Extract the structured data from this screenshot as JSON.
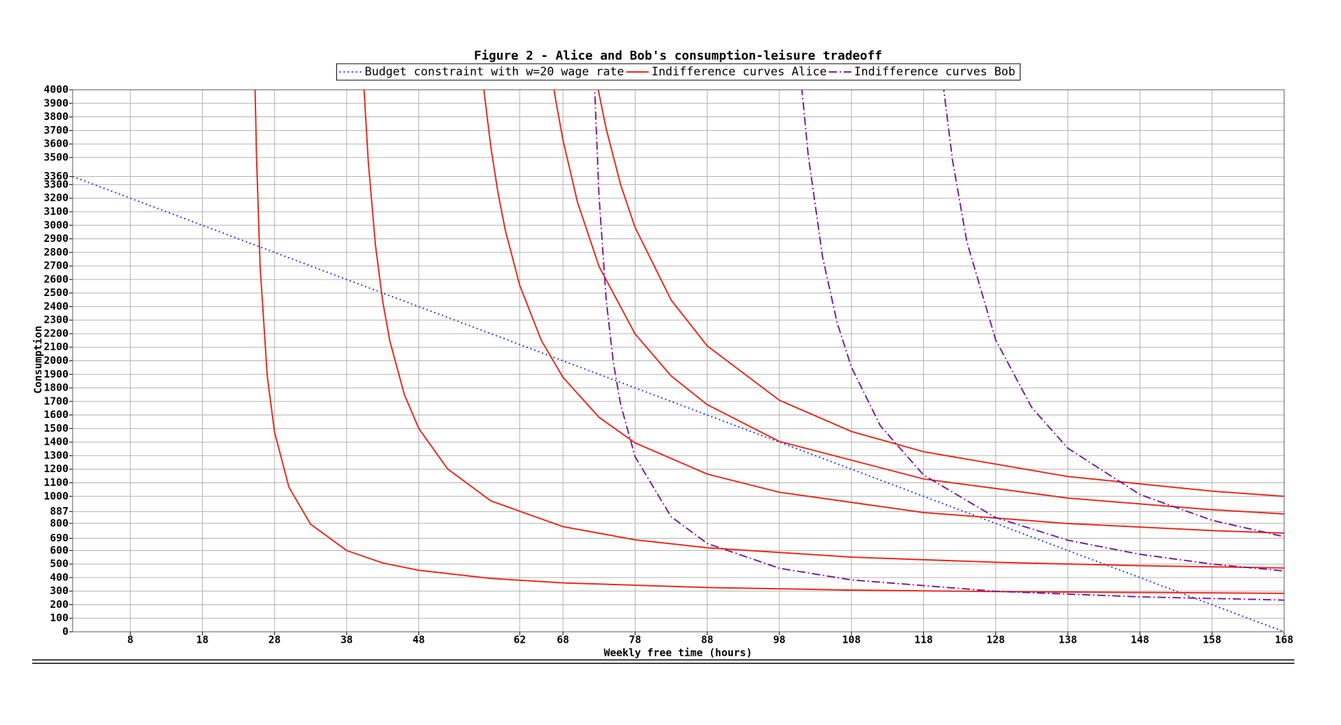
{
  "chart_data": {
    "type": "line",
    "title": "Figure 2 - Alice and Bob's consumption-leisure tradeoff",
    "xlabel": "Weekly free time (hours)",
    "ylabel": "Consumption",
    "xlim": [
      0,
      168
    ],
    "ylim": [
      0,
      4000
    ],
    "xticks": [
      8,
      18,
      28,
      38,
      48,
      62,
      68,
      78,
      88,
      98,
      108,
      118,
      128,
      138,
      148,
      158,
      168
    ],
    "yticks": [
      0,
      100,
      200,
      300,
      400,
      500,
      600,
      690,
      800,
      887,
      1000,
      1100,
      1200,
      1300,
      1400,
      1500,
      1600,
      1700,
      1800,
      1900,
      2000,
      2100,
      2200,
      2300,
      2400,
      2500,
      2600,
      2700,
      2800,
      2900,
      3000,
      3100,
      3200,
      3300,
      3360,
      3500,
      3600,
      3700,
      3800,
      3900,
      4000
    ],
    "grid": true,
    "legend": "top",
    "series": [
      {
        "name": "Budget constraint with w=20 wage rate",
        "color": "#1a3cf0",
        "dash": "dotted",
        "curves": [
          {
            "x": [
              0,
              168
            ],
            "values": [
              3360,
              0
            ]
          }
        ]
      },
      {
        "name": "Indifference curves Alice",
        "color": "#e8291c",
        "dash": "solid",
        "curves": [
          {
            "x": [
              25.3,
              25.5,
              26,
              27,
              28,
              30,
              33,
              38,
              43,
              48,
              58,
              68,
              88,
              108,
              128,
              148,
              168
            ],
            "values": [
              4019,
              3517,
              2700,
              1883,
              1475,
              1067,
              794,
              600,
              508,
              454,
              394,
              361,
              327,
              308,
              297,
              290,
              284
            ]
          },
          {
            "x": [
              40.4,
              41,
              42,
              43,
              44,
              46,
              48,
              52,
              58,
              68,
              78,
              88,
              108,
              128,
              148,
              168
            ],
            "values": [
              4015,
              3469,
              2851,
              2439,
              2144,
              1751,
              1501,
              1202,
              966,
              776,
              679,
              620,
              551,
              513,
              488,
              471
            ]
          },
          {
            "x": [
              57,
              58,
              59,
              60,
              62,
              65,
              68,
              73,
              78,
              88,
              98,
              118,
              138,
              158,
              168
            ],
            "values": [
              4012,
              3575,
              3236,
              2964,
              2557,
              2150,
              1878,
              1583,
              1394,
              1164,
              1030,
              880,
              799,
              747,
              728
            ]
          },
          {
            "x": [
              66.7,
              67,
              68,
              70,
              73,
              78,
              83,
              88,
              98,
              118,
              138,
              158,
              168
            ],
            "values": [
              4020,
              3921,
              3628,
              3173,
              2696,
              2198,
              1888,
              1676,
              1405,
              1128,
              987,
              901,
              870
            ]
          },
          {
            "x": [
              72.8,
              74,
              76,
              78,
              83,
              88,
              98,
              108,
              118,
              138,
              158,
              168
            ],
            "values": [
              4023,
              3710,
              3298,
              2984,
              2448,
              2110,
              1709,
              1478,
              1329,
              1146,
              1038,
              1000
            ]
          }
        ]
      },
      {
        "name": "Indifference curves Bob",
        "color": "#7b1a9c",
        "dash": "dashdot",
        "curves": [
          {
            "x": [
              72.35,
              73,
              74,
              75,
              76,
              78,
              83,
              88,
              98,
              108,
              128,
              148,
              168
            ],
            "values": [
              4062,
              3212,
              2444,
              1983,
              1676,
              1292,
              849,
              652,
              469,
              383,
              299,
              258,
              234
            ]
          },
          {
            "x": [
              101.1,
              102,
              104,
              106,
              108,
              112,
              118,
              128,
              138,
              148,
              158,
              168
            ],
            "values": [
              4020,
              3519,
              2765,
              2284,
              1952,
              1521,
              1157,
              843,
              676,
              572,
              500,
              449
            ]
          },
          {
            "x": [
              120.7,
              122,
              124,
              128,
              133,
              138,
              148,
              158,
              168
            ],
            "values": [
              4045,
              3484,
              2879,
              2154,
              1655,
              1355,
              1013,
              823,
              702
            ]
          }
        ]
      }
    ]
  }
}
